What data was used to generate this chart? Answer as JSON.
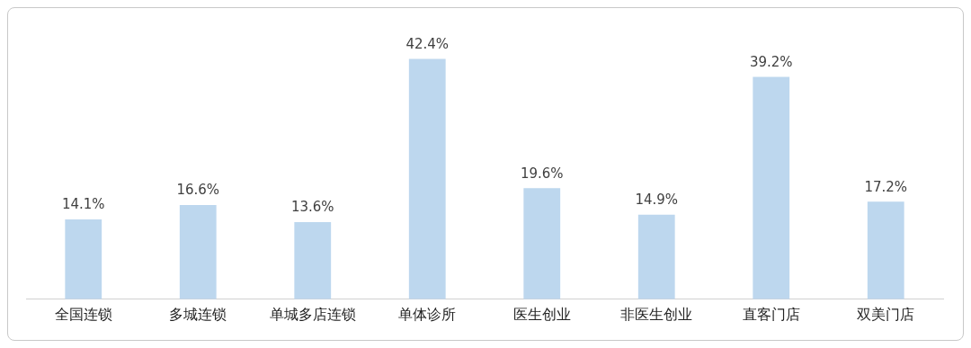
{
  "chart_data": {
    "type": "bar",
    "categories": [
      "全国连锁",
      "多城连锁",
      "单城多店连锁",
      "单体诊所",
      "医生创业",
      "非医生创业",
      "直客门店",
      "双美门店"
    ],
    "values": [
      14.1,
      16.6,
      13.6,
      42.4,
      19.6,
      14.9,
      39.2,
      17.2
    ],
    "value_labels": [
      "14.1%",
      "16.6%",
      "13.6%",
      "42.4%",
      "19.6%",
      "14.9%",
      "39.2%",
      "17.2%"
    ],
    "color": "#bdd7ee",
    "grid": false,
    "legend": false
  }
}
